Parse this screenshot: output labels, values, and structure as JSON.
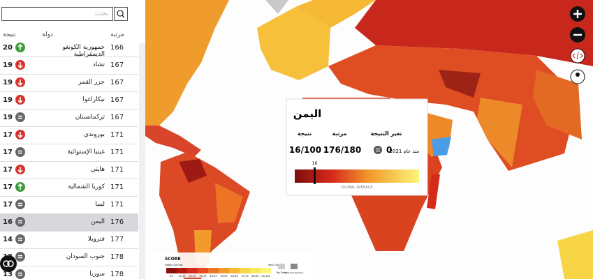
{
  "search": {
    "placeholder": "بحث"
  },
  "table": {
    "headers": [
      "نتيجة",
      "دولة",
      "مرتبة"
    ],
    "rows": [
      {
        "score": 20,
        "trend": "up",
        "country": "جمهورية الكونغو الديمقراطية",
        "rank": 166
      },
      {
        "score": 19,
        "trend": "down",
        "country": "تشاد",
        "rank": 167
      },
      {
        "score": 19,
        "trend": "down",
        "country": "جزر القمر",
        "rank": 167
      },
      {
        "score": 19,
        "trend": "down",
        "country": "نيكاراغوا",
        "rank": 167
      },
      {
        "score": 19,
        "trend": "same",
        "country": "تركمانستان",
        "rank": 167
      },
      {
        "score": 17,
        "trend": "down",
        "country": "بوروندي",
        "rank": 171
      },
      {
        "score": 17,
        "trend": "same",
        "country": "غينيا الإستوائية",
        "rank": 171
      },
      {
        "score": 17,
        "trend": "down",
        "country": "هايتي",
        "rank": 171
      },
      {
        "score": 17,
        "trend": "up",
        "country": "كوريا الشمالية",
        "rank": 171
      },
      {
        "score": 17,
        "trend": "same",
        "country": "ليبيا",
        "rank": 171
      },
      {
        "score": 16,
        "trend": "same",
        "country": "اليمن",
        "rank": 176,
        "selected": true
      },
      {
        "score": 14,
        "trend": "same",
        "country": "فنزويلا",
        "rank": 177
      },
      {
        "score": 13,
        "trend": "same",
        "country": "جنوب السودان",
        "rank": 178
      },
      {
        "score": 13,
        "trend": "same",
        "country": "سوريا",
        "rank": 178
      }
    ]
  },
  "popup": {
    "title": "اليمن",
    "labels": [
      "تغير النتيجة",
      "مرتبة",
      "نتيجة"
    ],
    "change": "0",
    "since": "منذ عام 2021",
    "rank": "176/180",
    "score": "16/100",
    "marker": 16,
    "scale": [
      0,
      100
    ],
    "average_label": "GLOBAL AVERAGE"
  },
  "legend": {
    "title": "SCORE",
    "low": "Highly Corrupt",
    "high": "Very Clean",
    "bins": [
      {
        "label": "0-9",
        "color": "#8b0f0f"
      },
      {
        "label": "10-19",
        "color": "#b3160f"
      },
      {
        "label": "20-29",
        "color": "#d62a1a"
      },
      {
        "label": "30-39",
        "color": "#e64a1e"
      },
      {
        "label": "40-49",
        "color": "#ec7424"
      },
      {
        "label": "50-59",
        "color": "#f29a2c"
      },
      {
        "label": "60-69",
        "color": "#f6b935"
      },
      {
        "label": "70-79",
        "color": "#f8d544"
      },
      {
        "label": "80-89",
        "color": "#f9e85a"
      },
      {
        "label": "90-100",
        "color": "#fbf57a"
      }
    ],
    "no_data": "No Data",
    "disputed": "Disputed Territory"
  }
}
